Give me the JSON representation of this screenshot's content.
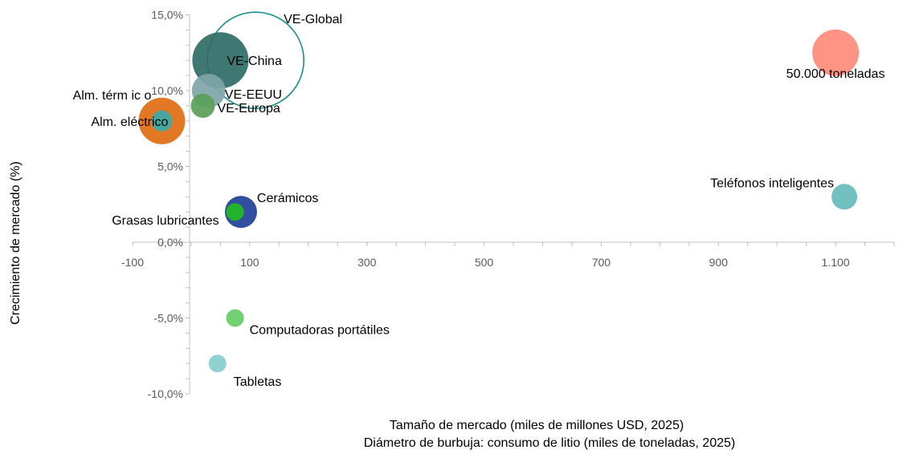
{
  "chart_data": {
    "type": "bubble",
    "title": "",
    "xlabel_lines": [
      "Tamaño de mercado (miles de millones USD, 2025)",
      "Diámetro de burbuja: consumo de litio (miles de toneladas, 2025)"
    ],
    "ylabel": "Crecimiento de mercado (%)",
    "xlim": [
      -100,
      1200
    ],
    "ylim": [
      -10,
      15
    ],
    "x_ticks": [
      -100,
      100,
      300,
      500,
      700,
      900,
      1100
    ],
    "x_tick_labels": [
      "-100",
      "100",
      "300",
      "500",
      "700",
      "900",
      "1.100"
    ],
    "y_ticks": [
      -10,
      -5,
      0,
      5,
      10,
      15
    ],
    "y_tick_labels": [
      "-10,0%",
      "-5,0%",
      "0,0%",
      "5,0%",
      "10,0%",
      "15,0%"
    ],
    "grid": false,
    "legend": "none",
    "points": [
      {
        "label": "VE-Global",
        "x": 110,
        "y": 12.0,
        "size": 120,
        "color": "#1a8f8f",
        "filled": false
      },
      {
        "label": "VE-China",
        "x": 50,
        "y": 12.0,
        "size": 70,
        "color": "#2f6b66",
        "filled": true
      },
      {
        "label": "VE-EEUU",
        "x": 30,
        "y": 10.0,
        "size": 42,
        "color": "#7fa5a8",
        "filled": true
      },
      {
        "label": "VE-Europa",
        "x": 20,
        "y": 9.0,
        "size": 30,
        "color": "#5a9e5a",
        "filled": true
      },
      {
        "label": "Alm. térm ic o",
        "x": -50,
        "y": 8.0,
        "size": 58,
        "color": "#e06d10",
        "filled": true
      },
      {
        "label": "Alm. eléctrico",
        "x": -50,
        "y": 8.0,
        "size": 26,
        "color": "#3aaaaa",
        "filled": true
      },
      {
        "label": "Cerámicos",
        "x": 85,
        "y": 2.0,
        "size": 40,
        "color": "#1f3f99",
        "filled": true
      },
      {
        "label": "Grasas lubricantes",
        "x": 75,
        "y": 2.0,
        "size": 22,
        "color": "#22bb22",
        "filled": true
      },
      {
        "label": "Computadoras portátiles",
        "x": 75,
        "y": -5.0,
        "size": 22,
        "color": "#66cc66",
        "filled": true
      },
      {
        "label": "Tabletas",
        "x": 45,
        "y": -8.0,
        "size": 22,
        "color": "#88cccc",
        "filled": true
      },
      {
        "label": "Teléfonos inteligentes",
        "x": 1115,
        "y": 3.0,
        "size": 32,
        "color": "#66bbbb",
        "filled": true
      },
      {
        "label": "50.000 toneladas",
        "x": 1100,
        "y": 12.5,
        "size": 58,
        "color": "#ff8a7a",
        "filled": true
      }
    ]
  }
}
